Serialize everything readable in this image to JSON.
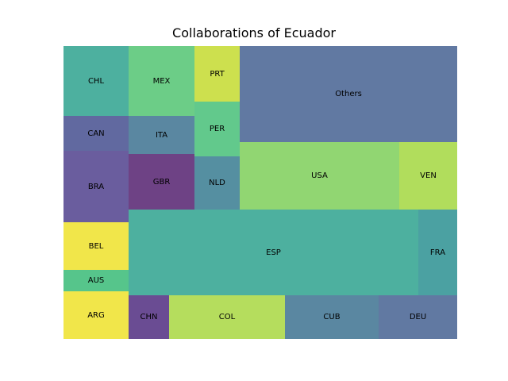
{
  "chart_data": {
    "type": "treemap",
    "title": "Collaborations of Ecuador",
    "cells": [
      {
        "label": "ARG",
        "color": "#f1e64a"
      },
      {
        "label": "AUS",
        "color": "#56c58b"
      },
      {
        "label": "BEL",
        "color": "#f1e64a"
      },
      {
        "label": "BRA",
        "color": "#6a5d9e"
      },
      {
        "label": "CAN",
        "color": "#6169a0"
      },
      {
        "label": "CHL",
        "color": "#4db09f"
      },
      {
        "label": "CHN",
        "color": "#6a4c93"
      },
      {
        "label": "COL",
        "color": "#b5dd5d"
      },
      {
        "label": "CUB",
        "color": "#5a87a1"
      },
      {
        "label": "DEU",
        "color": "#6179a2"
      },
      {
        "label": "ESP",
        "color": "#4db09f"
      },
      {
        "label": "FRA",
        "color": "#4ba1a2"
      },
      {
        "label": "GBR",
        "color": "#6e4285"
      },
      {
        "label": "ITA",
        "color": "#5a87a1"
      },
      {
        "label": "MEX",
        "color": "#6ccd87"
      },
      {
        "label": "NLD",
        "color": "#558fa1"
      },
      {
        "label": "PER",
        "color": "#62c98c"
      },
      {
        "label": "PRT",
        "color": "#cde04e"
      },
      {
        "label": "USA",
        "color": "#91d672"
      },
      {
        "label": "VEN",
        "color": "#b1dd5c"
      },
      {
        "label": "Others",
        "color": "#6179a2"
      }
    ]
  }
}
